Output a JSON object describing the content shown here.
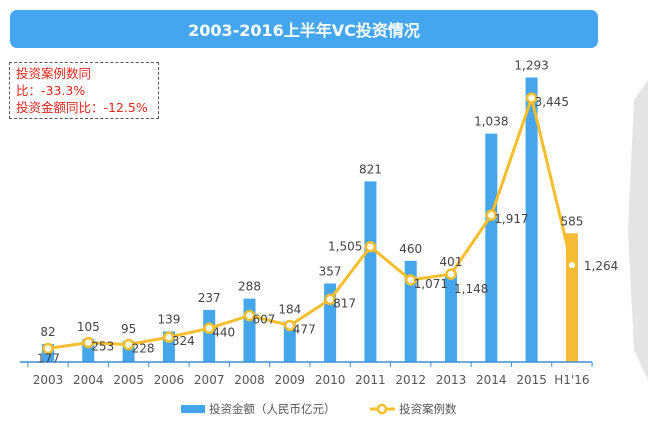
{
  "chart_data": {
    "type": "bar+line",
    "title": "2003-2016上半年VC投资情况",
    "annotations": [
      "投资案例数同比：-33.3%",
      "投资金额同比：-12.5%"
    ],
    "categories": [
      "2003",
      "2004",
      "2005",
      "2006",
      "2007",
      "2008",
      "2009",
      "2010",
      "2011",
      "2012",
      "2013",
      "2014",
      "2015",
      "H1'16"
    ],
    "series": [
      {
        "name": "投资金额（人民币亿元）",
        "type": "bar",
        "color": "#45a6ec",
        "highlight_color": "#f5bb36",
        "values": [
          82,
          105,
          95,
          139,
          237,
          288,
          184,
          357,
          821,
          460,
          401,
          1038,
          1293,
          585
        ],
        "labels": [
          "82",
          "105",
          "95",
          "139",
          "237",
          "288",
          "184",
          "357",
          "821",
          "460",
          "401",
          "1,038",
          "1,293",
          "585"
        ]
      },
      {
        "name": "投资案例数",
        "type": "line",
        "color": "#f6be2c",
        "values": [
          177,
          253,
          228,
          324,
          440,
          607,
          477,
          817,
          1505,
          1071,
          1148,
          1917,
          3445,
          1264
        ],
        "labels": [
          "177",
          "253",
          "228",
          "324",
          "440",
          "607",
          "477",
          "817",
          "1,505",
          "1,071",
          "1,148",
          "1,917",
          "3,445",
          "1,264"
        ]
      }
    ],
    "legend_placement": "bottom",
    "grid": false
  }
}
